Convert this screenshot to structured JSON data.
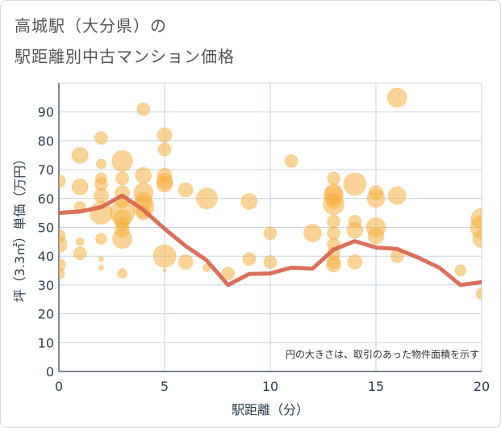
{
  "title_line1": "高城駅（大分県）の",
  "title_line2": "駅距離別中古マンション価格",
  "chart_data": {
    "type": "scatter",
    "title": "高城駅（大分県）の 駅距離別中古マンション価格",
    "xlabel": "駅距離（分）",
    "ylabel": "坪（3.3㎡）単価（万円）",
    "xlim": [
      0,
      20
    ],
    "ylim": [
      0,
      100
    ],
    "xticks": [
      0,
      5,
      10,
      15,
      20
    ],
    "yticks": [
      0,
      10,
      20,
      30,
      40,
      50,
      60,
      70,
      80,
      90
    ],
    "grid": true,
    "note": "円の大きさは、取引のあった物件面積を示す",
    "colors": {
      "bubble": "#f5b041",
      "line": "#d9604a",
      "grid": "#c5d3e0"
    },
    "series": [
      {
        "kind": "bubble",
        "points": [
          {
            "x": 0,
            "y": 66,
            "s": 8
          },
          {
            "x": 0,
            "y": 47,
            "s": 8
          },
          {
            "x": 0,
            "y": 44,
            "s": 10
          },
          {
            "x": 0,
            "y": 37,
            "s": 8
          },
          {
            "x": 0,
            "y": 34,
            "s": 7
          },
          {
            "x": 1,
            "y": 75,
            "s": 10
          },
          {
            "x": 1,
            "y": 64,
            "s": 10
          },
          {
            "x": 1,
            "y": 57,
            "s": 7
          },
          {
            "x": 1,
            "y": 45,
            "s": 5
          },
          {
            "x": 1,
            "y": 41,
            "s": 8
          },
          {
            "x": 2,
            "y": 81,
            "s": 8
          },
          {
            "x": 2,
            "y": 72,
            "s": 6
          },
          {
            "x": 2,
            "y": 67,
            "s": 7
          },
          {
            "x": 2,
            "y": 65,
            "s": 8
          },
          {
            "x": 2,
            "y": 61,
            "s": 9
          },
          {
            "x": 2,
            "y": 55,
            "s": 14
          },
          {
            "x": 2,
            "y": 46,
            "s": 7
          },
          {
            "x": 2,
            "y": 39,
            "s": 3
          },
          {
            "x": 2,
            "y": 36,
            "s": 3
          },
          {
            "x": 3,
            "y": 73,
            "s": 13
          },
          {
            "x": 3,
            "y": 67,
            "s": 8
          },
          {
            "x": 3,
            "y": 62,
            "s": 9
          },
          {
            "x": 3,
            "y": 59,
            "s": 8
          },
          {
            "x": 3,
            "y": 55,
            "s": 15
          },
          {
            "x": 3,
            "y": 53,
            "s": 11
          },
          {
            "x": 3,
            "y": 51,
            "s": 8
          },
          {
            "x": 3,
            "y": 49,
            "s": 9
          },
          {
            "x": 3,
            "y": 46,
            "s": 12
          },
          {
            "x": 3,
            "y": 34,
            "s": 6
          },
          {
            "x": 4,
            "y": 91,
            "s": 8
          },
          {
            "x": 4,
            "y": 68,
            "s": 10
          },
          {
            "x": 4,
            "y": 62,
            "s": 12
          },
          {
            "x": 4,
            "y": 59,
            "s": 11
          },
          {
            "x": 4,
            "y": 57,
            "s": 13
          },
          {
            "x": 4,
            "y": 55,
            "s": 9
          },
          {
            "x": 5,
            "y": 82,
            "s": 9
          },
          {
            "x": 5,
            "y": 77,
            "s": 8
          },
          {
            "x": 5,
            "y": 68,
            "s": 9
          },
          {
            "x": 5,
            "y": 66,
            "s": 10
          },
          {
            "x": 5,
            "y": 65,
            "s": 10
          },
          {
            "x": 5,
            "y": 40,
            "s": 14
          },
          {
            "x": 5,
            "y": 35,
            "s": 2
          },
          {
            "x": 6,
            "y": 63,
            "s": 9
          },
          {
            "x": 6,
            "y": 38,
            "s": 9
          },
          {
            "x": 7,
            "y": 60,
            "s": 13
          },
          {
            "x": 7,
            "y": 36,
            "s": 5
          },
          {
            "x": 8,
            "y": 34,
            "s": 8
          },
          {
            "x": 9,
            "y": 59,
            "s": 10
          },
          {
            "x": 9,
            "y": 39,
            "s": 8
          },
          {
            "x": 10,
            "y": 48,
            "s": 8
          },
          {
            "x": 10,
            "y": 38,
            "s": 8
          },
          {
            "x": 11,
            "y": 73,
            "s": 8
          },
          {
            "x": 12,
            "y": 48,
            "s": 11
          },
          {
            "x": 13,
            "y": 67,
            "s": 8
          },
          {
            "x": 13,
            "y": 62,
            "s": 11
          },
          {
            "x": 13,
            "y": 61,
            "s": 12
          },
          {
            "x": 13,
            "y": 59,
            "s": 9
          },
          {
            "x": 13,
            "y": 58,
            "s": 13
          },
          {
            "x": 13,
            "y": 52,
            "s": 8
          },
          {
            "x": 13,
            "y": 48,
            "s": 8
          },
          {
            "x": 13,
            "y": 44,
            "s": 8
          },
          {
            "x": 13,
            "y": 41,
            "s": 8
          },
          {
            "x": 13,
            "y": 38,
            "s": 8
          },
          {
            "x": 13,
            "y": 37,
            "s": 9
          },
          {
            "x": 14,
            "y": 65,
            "s": 14
          },
          {
            "x": 14,
            "y": 52,
            "s": 8
          },
          {
            "x": 14,
            "y": 49,
            "s": 10
          },
          {
            "x": 14,
            "y": 38,
            "s": 9
          },
          {
            "x": 15,
            "y": 62,
            "s": 9
          },
          {
            "x": 15,
            "y": 60,
            "s": 11
          },
          {
            "x": 15,
            "y": 50,
            "s": 12
          },
          {
            "x": 15,
            "y": 47,
            "s": 10
          },
          {
            "x": 16,
            "y": 95,
            "s": 12
          },
          {
            "x": 16,
            "y": 61,
            "s": 11
          },
          {
            "x": 16,
            "y": 40,
            "s": 8
          },
          {
            "x": 19,
            "y": 35,
            "s": 7
          },
          {
            "x": 20,
            "y": 53,
            "s": 13
          },
          {
            "x": 20,
            "y": 50,
            "s": 14
          },
          {
            "x": 20,
            "y": 46,
            "s": 11
          },
          {
            "x": 20,
            "y": 27,
            "s": 7
          }
        ]
      },
      {
        "kind": "line",
        "x": [
          0,
          1,
          2,
          3,
          4,
          5,
          6,
          7,
          8,
          9,
          10,
          11,
          12,
          13,
          14,
          15,
          16,
          17,
          18,
          19,
          20
        ],
        "y": [
          55,
          55.5,
          57,
          61,
          56,
          49.5,
          43.5,
          38.5,
          30,
          33.8,
          34,
          36,
          35.7,
          42.3,
          45.2,
          43,
          42.5,
          39.5,
          36,
          30,
          31
        ]
      }
    ]
  }
}
